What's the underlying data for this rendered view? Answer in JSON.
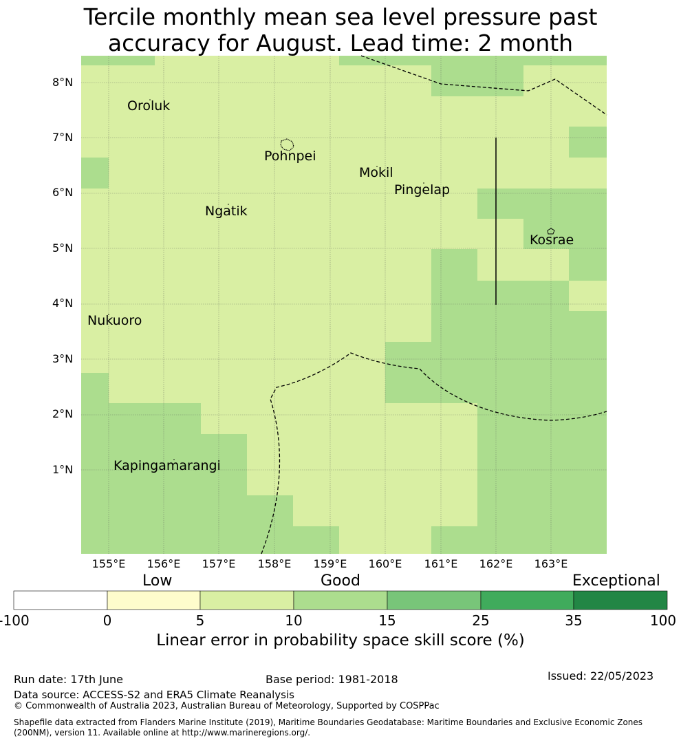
{
  "title_line1": "Tercile monthly mean sea level pressure past",
  "title_line2": "accuracy for August. Lead time: 2 month",
  "lat_labels": [
    "8°N",
    "7°N",
    "6°N",
    "5°N",
    "4°N",
    "3°N",
    "2°N",
    "1°N"
  ],
  "lon_labels": [
    "155°E",
    "156°E",
    "157°E",
    "158°E",
    "159°E",
    "160°E",
    "161°E",
    "162°E",
    "163°E"
  ],
  "places": [
    "Oroluk",
    "Pohnpei",
    "Mokil",
    "Pingelap",
    "Ngatik",
    "Kosrae",
    "Nukuoro",
    "Kapingamarangi"
  ],
  "colorbar": {
    "categories": [
      "Low",
      "Good",
      "Exceptional"
    ],
    "ticks": [
      "-100",
      "0",
      "5",
      "10",
      "15",
      "25",
      "35",
      "100"
    ],
    "colors": [
      "#ffffff",
      "#fefccc",
      "#d9efa3",
      "#acdd8e",
      "#78c579",
      "#40ab5c",
      "#228645"
    ],
    "label": "Linear error in probability space skill score (%)"
  },
  "map_colors": {
    "light": "#d9efa3",
    "medium": "#acdd8e"
  },
  "footer": {
    "run_date": "Run date: 17th June",
    "base_period": "Base period: 1981-2018",
    "issued": "Issued: 22/05/2023",
    "data_source": "Data source: ACCESS-S2 and ERA5 Climate Reanalysis",
    "copyright": "© Commonwealth of Australia 2023, Australian Bureau of Meteorology, Supported by COSPPac",
    "shapefile": "Shapefile data extracted from Flanders Marine Institute (2019), Maritime Boundaries Geodatabase: Maritime Boundaries and Exclusive Economic Zones (200NM), version 11. Available online at http://www.marineregions.org/."
  }
}
